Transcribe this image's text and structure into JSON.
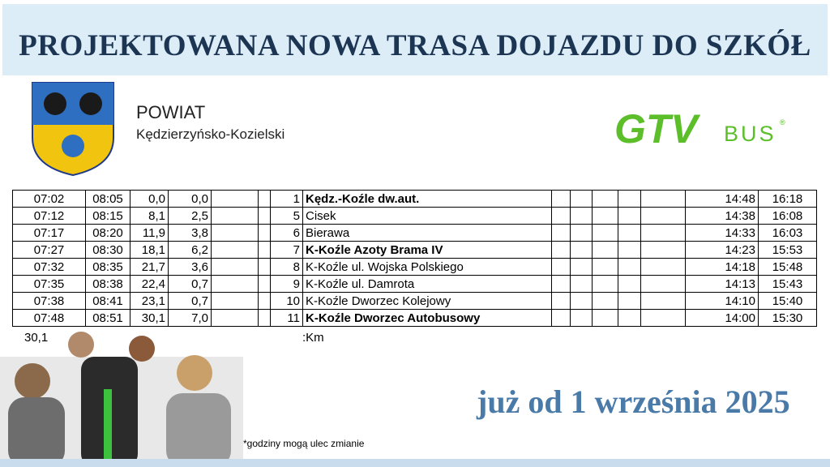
{
  "header": {
    "title": "PROJEKTOWANA NOWA TRASA DOJAZDU DO SZKÓŁ"
  },
  "county": {
    "label": "POWIAT",
    "name": "Kędzierzyńsko-Kozielski"
  },
  "brand": {
    "name": "GTV",
    "suffix": "BUS",
    "mark": "®"
  },
  "table": {
    "rows": [
      {
        "cells": [
          "07:02",
          "08:05",
          "0,0",
          "0,0",
          "1",
          "Kędz.-Koźle dw.aut.",
          "14:48",
          "16:18"
        ],
        "bold": true
      },
      {
        "cells": [
          "07:12",
          "08:15",
          "8,1",
          "2,5",
          "5",
          "Cisek",
          "14:38",
          "16:08"
        ],
        "bold": false
      },
      {
        "cells": [
          "07:17",
          "08:20",
          "11,9",
          "3,8",
          "6",
          "Bierawa",
          "14:33",
          "16:03"
        ],
        "bold": false
      },
      {
        "cells": [
          "07:27",
          "08:30",
          "18,1",
          "6,2",
          "7",
          "K-Koźle Azoty Brama IV",
          "14:23",
          "15:53"
        ],
        "bold": true
      },
      {
        "cells": [
          "07:32",
          "08:35",
          "21,7",
          "3,6",
          "8",
          "K-Koźle ul. Wojska Polskiego",
          "14:18",
          "15:48"
        ],
        "bold": false
      },
      {
        "cells": [
          "07:35",
          "08:38",
          "22,4",
          "0,7",
          "9",
          "K-Koźle ul. Damrota",
          "14:13",
          "15:43"
        ],
        "bold": false
      },
      {
        "cells": [
          "07:38",
          "08:41",
          "23,1",
          "0,7",
          "10",
          "K-Koźle Dworzec Kolejowy",
          "14:10",
          "15:40"
        ],
        "bold": false
      },
      {
        "cells": [
          "07:48",
          "08:51",
          "30,1",
          "7,0",
          "11",
          "K-Koźle Dworzec Autobusowy",
          "14:00",
          "15:30"
        ],
        "bold": true
      }
    ],
    "total": "30,1",
    "unit": ":Km"
  },
  "footer": {
    "start": "już od 1 września 2025",
    "note": "*godziny mogą ulec zmianie"
  }
}
